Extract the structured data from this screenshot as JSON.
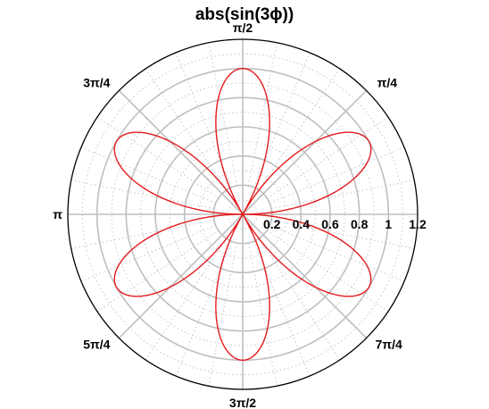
{
  "chart_data": {
    "type": "line",
    "coordinate_system": "polar",
    "title": "abs(sin(3ϕ))",
    "function": "abs(sin(3*phi))",
    "rlim": [
      0,
      1.2
    ],
    "radial_ticks": [
      0.2,
      0.4,
      0.6,
      0.8,
      1,
      1.2
    ],
    "radial_tick_labels": [
      "0.2",
      "0.4",
      "0.6",
      "0.8",
      "1",
      "1.2"
    ],
    "radial_tick_angle_label": "0",
    "angle_ticks_deg": [
      0,
      45,
      90,
      135,
      180,
      225,
      270,
      315
    ],
    "angle_tick_labels": [
      "",
      "π/4",
      "π/2",
      "3π/4",
      "π",
      "5π/4",
      "3π/2",
      "7π/4"
    ],
    "minor_radial_step": 0.1,
    "minor_angle_step_deg": 11.25,
    "grid": true,
    "series": [
      {
        "color": "#e41a1c",
        "phi_range": [
          0,
          6.283185
        ],
        "samples": 720
      }
    ],
    "colors": {
      "curve": "#e41a1c",
      "major_grid": "#bfbfbf",
      "minor_grid": "#bfbfbf",
      "outer_circle": "#000000"
    }
  }
}
